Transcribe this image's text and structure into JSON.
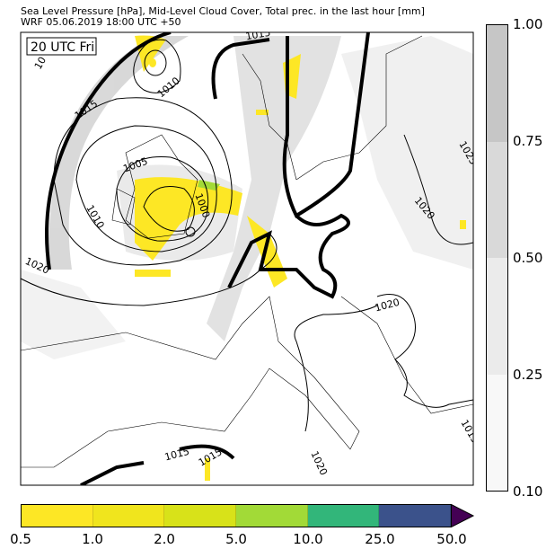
{
  "title": {
    "line1": "Sea Level Pressure [hPa], Mid-Level Cloud Cover, Total prec. in the last hour [mm]",
    "line2": "WRF 05.06.2019 18:00 UTC +50"
  },
  "map": {
    "time_label": "20 UTC Fri",
    "isobar_labels": [
      "1015",
      "10",
      "1010",
      "1015",
      "1005",
      "1010",
      "1000",
      "1020",
      "1025",
      "1020",
      "1020",
      "1015",
      "1015",
      "1020",
      "1015"
    ]
  },
  "cloud_colorbar": {
    "ticks": [
      "1.00",
      "0.75",
      "0.50",
      "0.25",
      "0.10"
    ],
    "colors": [
      "#c6c6c6",
      "#d9d9d9",
      "#ebebeb",
      "#f8f8f8"
    ]
  },
  "precip_colorbar": {
    "ticks": [
      "0.5",
      "1.0",
      "2.0",
      "5.0",
      "10.0",
      "25.0",
      "50.0"
    ],
    "colors": [
      "#fde725",
      "#f0e51d",
      "#d8e219",
      "#a2da37",
      "#32b67a",
      "#3b528b"
    ],
    "extend_color": "#440154"
  }
}
